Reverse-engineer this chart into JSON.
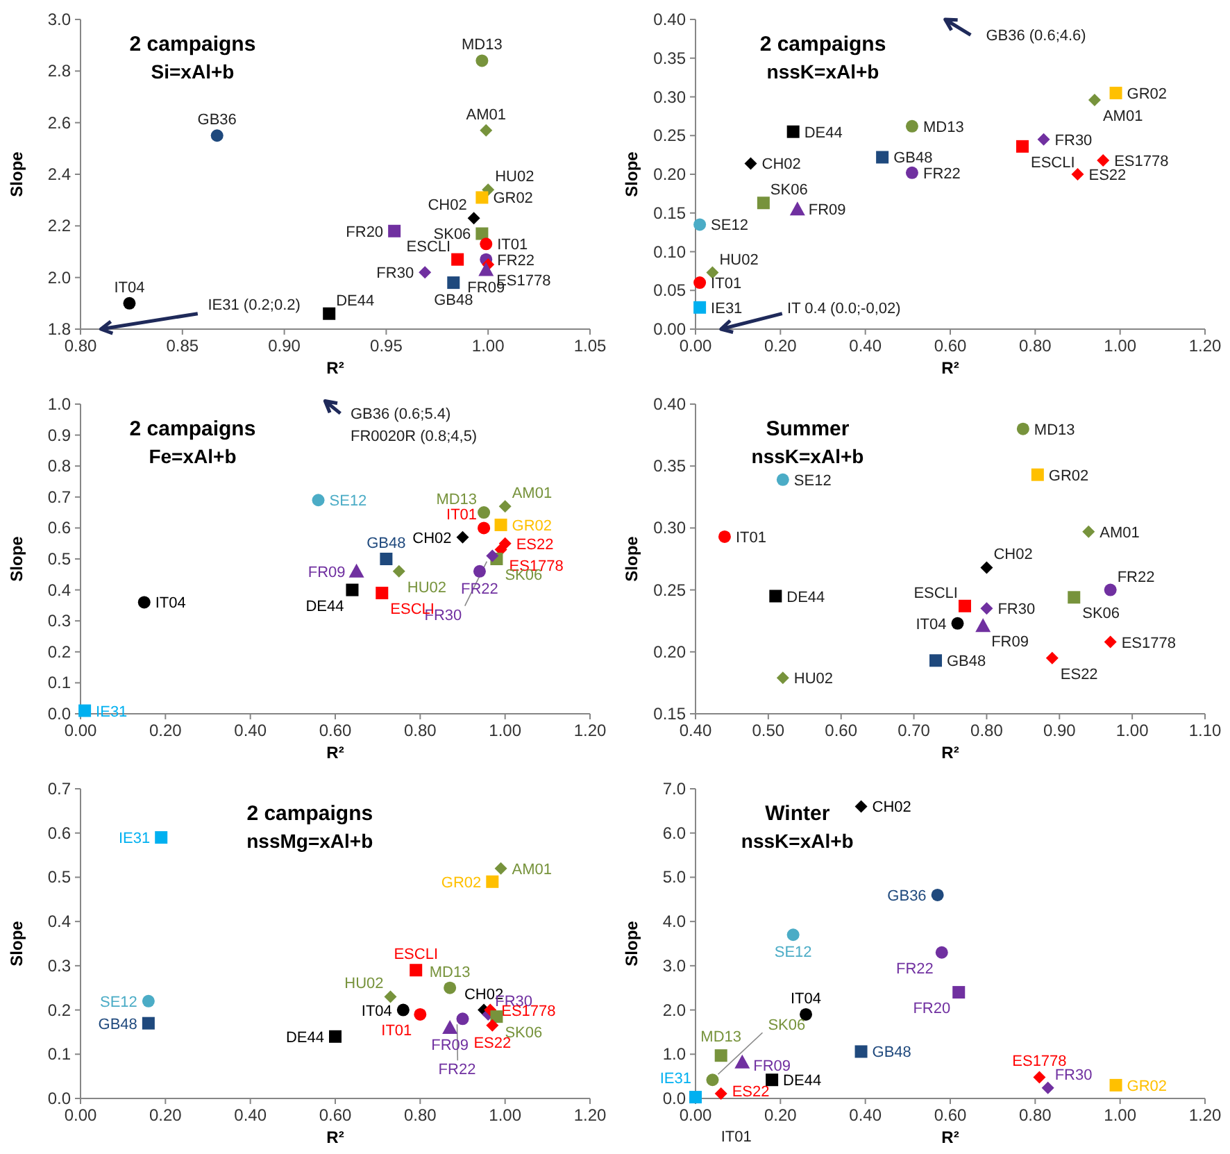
{
  "chart_data": [
    {
      "type": "scatter",
      "title": "2 campaigns",
      "subtitle": "Si=xAl+b",
      "xlabel": "R²",
      "ylabel": "Slope",
      "xlim": [
        0.8,
        1.05
      ],
      "xticks": [
        {
          "value": 0.8,
          "label": "0.80"
        },
        {
          "value": 0.85,
          "label": "0.85"
        },
        {
          "value": 0.9,
          "label": "0.90"
        },
        {
          "value": 0.95,
          "label": "0.95"
        },
        {
          "value": 1.0,
          "label": "1.00"
        },
        {
          "value": 1.05,
          "label": "1.05"
        }
      ],
      "ylim": [
        1.8,
        3.0
      ],
      "yticks": [
        {
          "value": 1.8,
          "label": "1.8"
        },
        {
          "value": 2.0,
          "label": "2.0"
        },
        {
          "value": 2.2,
          "label": "2.2"
        },
        {
          "value": 2.4,
          "label": "2.4"
        },
        {
          "value": 2.6,
          "label": "2.6"
        },
        {
          "value": 2.8,
          "label": "2.8"
        },
        {
          "value": 3.0,
          "label": "3.0"
        }
      ],
      "grid": false,
      "legend": false,
      "annotations": [
        "IE31 (0.2;0.2)"
      ],
      "series": [
        {
          "name": "MD13",
          "color": "#77933c",
          "marker": "circle",
          "x": [
            0.997
          ],
          "values": [
            2.84
          ]
        },
        {
          "name": "AM01",
          "color": "#77933c",
          "marker": "diamond",
          "x": [
            0.999
          ],
          "values": [
            2.57
          ]
        },
        {
          "name": "GB36",
          "color": "#1f497d",
          "marker": "circle",
          "x": [
            0.867
          ],
          "values": [
            2.55
          ]
        },
        {
          "name": "HU02",
          "color": "#77933c",
          "marker": "diamond",
          "x": [
            1.0
          ],
          "values": [
            2.34
          ]
        },
        {
          "name": "GR02",
          "color": "#ffc000",
          "marker": "square",
          "x": [
            0.997
          ],
          "values": [
            2.31
          ]
        },
        {
          "name": "CH02",
          "color": "#000000",
          "marker": "diamond",
          "x": [
            0.993
          ],
          "values": [
            2.23
          ]
        },
        {
          "name": "FR20",
          "color": "#7030a0",
          "marker": "square",
          "x": [
            0.954
          ],
          "values": [
            2.18
          ]
        },
        {
          "name": "SK06",
          "color": "#77933c",
          "marker": "square",
          "x": [
            0.997
          ],
          "values": [
            2.17
          ]
        },
        {
          "name": "IT01",
          "color": "#ff0000",
          "marker": "circle",
          "x": [
            0.999
          ],
          "values": [
            2.13
          ]
        },
        {
          "name": "ESCLI",
          "color": "#ff0000",
          "marker": "square",
          "x": [
            0.985
          ],
          "values": [
            2.07
          ]
        },
        {
          "name": "FR22",
          "color": "#7030a0",
          "marker": "circle",
          "x": [
            0.999
          ],
          "values": [
            2.07
          ]
        },
        {
          "name": "ES1778",
          "color": "#ff0000",
          "marker": "diamond",
          "x": [
            1.0
          ],
          "values": [
            2.05
          ]
        },
        {
          "name": "FR09",
          "color": "#7030a0",
          "marker": "triangle",
          "x": [
            0.999
          ],
          "values": [
            2.03
          ]
        },
        {
          "name": "FR30",
          "color": "#7030a0",
          "marker": "diamond",
          "x": [
            0.969
          ],
          "values": [
            2.02
          ]
        },
        {
          "name": "GB48",
          "color": "#1f497d",
          "marker": "square",
          "x": [
            0.983
          ],
          "values": [
            1.98
          ]
        },
        {
          "name": "DE44",
          "color": "#000000",
          "marker": "square",
          "x": [
            0.922
          ],
          "values": [
            1.86
          ]
        },
        {
          "name": "IT04",
          "color": "#000000",
          "marker": "circle",
          "x": [
            0.824
          ],
          "values": [
            1.9
          ]
        }
      ]
    },
    {
      "type": "scatter",
      "title": "2 campaigns",
      "subtitle": "nssK=xAl+b",
      "xlabel": "R²",
      "ylabel": "Slope",
      "xlim": [
        0,
        1.2
      ],
      "xticks": [
        {
          "value": 0,
          "label": "0.00"
        },
        {
          "value": 0.2,
          "label": "0.20"
        },
        {
          "value": 0.4,
          "label": "0.40"
        },
        {
          "value": 0.6,
          "label": "0.60"
        },
        {
          "value": 0.8,
          "label": "0.80"
        },
        {
          "value": 1.0,
          "label": "1.00"
        },
        {
          "value": 1.2,
          "label": "1.20"
        }
      ],
      "ylim": [
        0,
        0.4
      ],
      "yticks": [
        {
          "value": 0,
          "label": "0.00"
        },
        {
          "value": 0.05,
          "label": "0.05"
        },
        {
          "value": 0.1,
          "label": "0.10"
        },
        {
          "value": 0.15,
          "label": "0.15"
        },
        {
          "value": 0.2,
          "label": "0.20"
        },
        {
          "value": 0.25,
          "label": "0.25"
        },
        {
          "value": 0.3,
          "label": "0.30"
        },
        {
          "value": 0.35,
          "label": "0.35"
        },
        {
          "value": 0.4,
          "label": "0.40"
        }
      ],
      "grid": false,
      "legend": false,
      "annotations": [
        "GB36 (0.6;4.6)",
        "IT 0.4 (0.0;-0,02)"
      ],
      "series": [
        {
          "name": "GR02",
          "color": "#ffc000",
          "marker": "square",
          "x": [
            0.99
          ],
          "values": [
            0.305
          ]
        },
        {
          "name": "AM01",
          "color": "#77933c",
          "marker": "diamond",
          "x": [
            0.94
          ],
          "values": [
            0.296
          ]
        },
        {
          "name": "DE44",
          "color": "#000000",
          "marker": "square",
          "x": [
            0.23
          ],
          "values": [
            0.255
          ]
        },
        {
          "name": "MD13",
          "color": "#77933c",
          "marker": "circle",
          "x": [
            0.51
          ],
          "values": [
            0.262
          ]
        },
        {
          "name": "FR30",
          "color": "#7030a0",
          "marker": "diamond",
          "x": [
            0.82
          ],
          "values": [
            0.245
          ]
        },
        {
          "name": "ESCLI",
          "color": "#ff0000",
          "marker": "square",
          "x": [
            0.77
          ],
          "values": [
            0.236
          ]
        },
        {
          "name": "GB48",
          "color": "#1f497d",
          "marker": "square",
          "x": [
            0.44
          ],
          "values": [
            0.222
          ]
        },
        {
          "name": "CH02",
          "color": "#000000",
          "marker": "diamond",
          "x": [
            0.13
          ],
          "values": [
            0.214
          ]
        },
        {
          "name": "ES1778",
          "color": "#ff0000",
          "marker": "diamond",
          "x": [
            0.96
          ],
          "values": [
            0.218
          ]
        },
        {
          "name": "FR22",
          "color": "#7030a0",
          "marker": "circle",
          "x": [
            0.51
          ],
          "values": [
            0.202
          ]
        },
        {
          "name": "ES22",
          "color": "#ff0000",
          "marker": "diamond",
          "x": [
            0.9
          ],
          "values": [
            0.2
          ]
        },
        {
          "name": "SK06",
          "color": "#77933c",
          "marker": "square",
          "x": [
            0.16
          ],
          "values": [
            0.163
          ]
        },
        {
          "name": "FR09",
          "color": "#7030a0",
          "marker": "triangle",
          "x": [
            0.24
          ],
          "values": [
            0.155
          ]
        },
        {
          "name": "SE12",
          "color": "#4bacc6",
          "marker": "circle",
          "x": [
            0.01
          ],
          "values": [
            0.135
          ]
        },
        {
          "name": "HU02",
          "color": "#77933c",
          "marker": "diamond",
          "x": [
            0.04
          ],
          "values": [
            0.073
          ]
        },
        {
          "name": "IT01",
          "color": "#ff0000",
          "marker": "circle",
          "x": [
            0.01
          ],
          "values": [
            0.06
          ]
        },
        {
          "name": "IE31",
          "color": "#00b0f0",
          "marker": "square",
          "x": [
            0.01
          ],
          "values": [
            0.028
          ]
        }
      ]
    },
    {
      "type": "scatter",
      "title": "2 campaigns",
      "subtitle": "Fe=xAl+b",
      "xlabel": "R²",
      "ylabel": "Slope",
      "xlim": [
        0,
        1.2
      ],
      "xticks": [
        {
          "value": 0,
          "label": "0.00"
        },
        {
          "value": 0.2,
          "label": "0.20"
        },
        {
          "value": 0.4,
          "label": "0.40"
        },
        {
          "value": 0.6,
          "label": "0.60"
        },
        {
          "value": 0.8,
          "label": "0.80"
        },
        {
          "value": 1.0,
          "label": "1.00"
        },
        {
          "value": 1.2,
          "label": "1.20"
        }
      ],
      "ylim": [
        0,
        1.0
      ],
      "yticks": [
        {
          "value": 0,
          "label": "0.0"
        },
        {
          "value": 0.1,
          "label": "0.1"
        },
        {
          "value": 0.2,
          "label": "0.2"
        },
        {
          "value": 0.3,
          "label": "0.3"
        },
        {
          "value": 0.4,
          "label": "0.4"
        },
        {
          "value": 0.5,
          "label": "0.5"
        },
        {
          "value": 0.6,
          "label": "0.6"
        },
        {
          "value": 0.7,
          "label": "0.7"
        },
        {
          "value": 0.8,
          "label": "0.8"
        },
        {
          "value": 0.9,
          "label": "0.9"
        },
        {
          "value": 1.0,
          "label": "1.0"
        }
      ],
      "grid": false,
      "legend": false,
      "annotations": [
        "GB36 (0.6;5.4)",
        "FR0020R (0.8;4,5)"
      ],
      "series": [
        {
          "name": "SE12",
          "color": "#4bacc6",
          "marker": "circle",
          "x": [
            0.56
          ],
          "values": [
            0.69
          ]
        },
        {
          "name": "AM01",
          "color": "#77933c",
          "marker": "diamond",
          "x": [
            1.0
          ],
          "values": [
            0.67
          ]
        },
        {
          "name": "MD13",
          "color": "#77933c",
          "marker": "circle",
          "x": [
            0.95
          ],
          "values": [
            0.65
          ]
        },
        {
          "name": "GR02",
          "color": "#ffc000",
          "marker": "square",
          "x": [
            0.99
          ],
          "values": [
            0.61
          ]
        },
        {
          "name": "IT01",
          "color": "#ff0000",
          "marker": "circle",
          "x": [
            0.95
          ],
          "values": [
            0.6
          ]
        },
        {
          "name": "CH02",
          "color": "#000000",
          "marker": "diamond",
          "x": [
            0.9
          ],
          "values": [
            0.57
          ]
        },
        {
          "name": "ES22",
          "color": "#ff0000",
          "marker": "diamond",
          "x": [
            1.0
          ],
          "values": [
            0.55
          ]
        },
        {
          "name": "ES1778",
          "color": "#ff0000",
          "marker": "diamond",
          "x": [
            0.99
          ],
          "values": [
            0.53
          ]
        },
        {
          "name": "SK06",
          "color": "#77933c",
          "marker": "square",
          "x": [
            0.98
          ],
          "values": [
            0.5
          ]
        },
        {
          "name": "FR30",
          "color": "#7030a0",
          "marker": "diamond",
          "x": [
            0.97
          ],
          "values": [
            0.51
          ]
        },
        {
          "name": "GB48",
          "color": "#1f497d",
          "marker": "square",
          "x": [
            0.72
          ],
          "values": [
            0.5
          ]
        },
        {
          "name": "HU02",
          "color": "#77933c",
          "marker": "diamond",
          "x": [
            0.75
          ],
          "values": [
            0.46
          ]
        },
        {
          "name": "FR09",
          "color": "#7030a0",
          "marker": "triangle",
          "x": [
            0.65
          ],
          "values": [
            0.46
          ]
        },
        {
          "name": "FR22",
          "color": "#7030a0",
          "marker": "circle",
          "x": [
            0.94
          ],
          "values": [
            0.46
          ]
        },
        {
          "name": "DE44",
          "color": "#000000",
          "marker": "square",
          "x": [
            0.64
          ],
          "values": [
            0.4
          ]
        },
        {
          "name": "ESCLI",
          "color": "#ff0000",
          "marker": "square",
          "x": [
            0.71
          ],
          "values": [
            0.39
          ]
        },
        {
          "name": "IT04",
          "color": "#000000",
          "marker": "circle",
          "x": [
            0.15
          ],
          "values": [
            0.36
          ]
        },
        {
          "name": "IE31",
          "color": "#00b0f0",
          "marker": "square",
          "x": [
            0.01
          ],
          "values": [
            0.01
          ]
        }
      ]
    },
    {
      "type": "scatter",
      "title": "Summer",
      "subtitle": "nssK=xAl+b",
      "xlabel": "R²",
      "ylabel": "Slope",
      "xlim": [
        0.4,
        1.1
      ],
      "xticks": [
        {
          "value": 0.4,
          "label": "0.40"
        },
        {
          "value": 0.5,
          "label": "0.50"
        },
        {
          "value": 0.6,
          "label": "0.60"
        },
        {
          "value": 0.7,
          "label": "0.70"
        },
        {
          "value": 0.8,
          "label": "0.80"
        },
        {
          "value": 0.9,
          "label": "0.90"
        },
        {
          "value": 1.0,
          "label": "1.00"
        },
        {
          "value": 1.1,
          "label": "1.10"
        }
      ],
      "ylim": [
        0.15,
        0.4
      ],
      "yticks": [
        {
          "value": 0.15,
          "label": "0.15"
        },
        {
          "value": 0.2,
          "label": "0.20"
        },
        {
          "value": 0.25,
          "label": "0.25"
        },
        {
          "value": 0.3,
          "label": "0.30"
        },
        {
          "value": 0.35,
          "label": "0.35"
        },
        {
          "value": 0.4,
          "label": "0.40"
        }
      ],
      "grid": false,
      "legend": false,
      "series": [
        {
          "name": "MD13",
          "color": "#77933c",
          "marker": "circle",
          "x": [
            0.85
          ],
          "values": [
            0.38
          ]
        },
        {
          "name": "GR02",
          "color": "#ffc000",
          "marker": "square",
          "x": [
            0.87
          ],
          "values": [
            0.343
          ]
        },
        {
          "name": "SE12",
          "color": "#4bacc6",
          "marker": "circle",
          "x": [
            0.52
          ],
          "values": [
            0.339
          ]
        },
        {
          "name": "AM01",
          "color": "#77933c",
          "marker": "diamond",
          "x": [
            0.94
          ],
          "values": [
            0.297
          ]
        },
        {
          "name": "IT01",
          "color": "#ff0000",
          "marker": "circle",
          "x": [
            0.44
          ],
          "values": [
            0.293
          ]
        },
        {
          "name": "CH02",
          "color": "#000000",
          "marker": "diamond",
          "x": [
            0.8
          ],
          "values": [
            0.268
          ]
        },
        {
          "name": "FR22",
          "color": "#7030a0",
          "marker": "circle",
          "x": [
            0.97
          ],
          "values": [
            0.25
          ]
        },
        {
          "name": "DE44",
          "color": "#000000",
          "marker": "square",
          "x": [
            0.51
          ],
          "values": [
            0.245
          ]
        },
        {
          "name": "SK06",
          "color": "#77933c",
          "marker": "square",
          "x": [
            0.92
          ],
          "values": [
            0.244
          ]
        },
        {
          "name": "ESCLI",
          "color": "#ff0000",
          "marker": "square",
          "x": [
            0.77
          ],
          "values": [
            0.237
          ]
        },
        {
          "name": "FR30",
          "color": "#7030a0",
          "marker": "diamond",
          "x": [
            0.8
          ],
          "values": [
            0.235
          ]
        },
        {
          "name": "IT04",
          "color": "#000000",
          "marker": "circle",
          "x": [
            0.76
          ],
          "values": [
            0.223
          ]
        },
        {
          "name": "FR09",
          "color": "#7030a0",
          "marker": "triangle",
          "x": [
            0.795
          ],
          "values": [
            0.221
          ]
        },
        {
          "name": "ES1778",
          "color": "#ff0000",
          "marker": "diamond",
          "x": [
            0.97
          ],
          "values": [
            0.208
          ]
        },
        {
          "name": "ES22",
          "color": "#ff0000",
          "marker": "diamond",
          "x": [
            0.89
          ],
          "values": [
            0.195
          ]
        },
        {
          "name": "GB48",
          "color": "#1f497d",
          "marker": "square",
          "x": [
            0.73
          ],
          "values": [
            0.193
          ]
        },
        {
          "name": "HU02",
          "color": "#77933c",
          "marker": "diamond",
          "x": [
            0.52
          ],
          "values": [
            0.179
          ]
        }
      ]
    },
    {
      "type": "scatter",
      "title": "2 campaigns",
      "subtitle": "nssMg=xAl+b",
      "xlabel": "R²",
      "ylabel": "Slope",
      "xlim": [
        0,
        1.2
      ],
      "xticks": [
        {
          "value": 0,
          "label": "0.00"
        },
        {
          "value": 0.2,
          "label": "0.20"
        },
        {
          "value": 0.4,
          "label": "0.40"
        },
        {
          "value": 0.6,
          "label": "0.60"
        },
        {
          "value": 0.8,
          "label": "0.80"
        },
        {
          "value": 1.0,
          "label": "1.00"
        },
        {
          "value": 1.2,
          "label": "1.20"
        }
      ],
      "ylim": [
        0,
        0.7
      ],
      "yticks": [
        {
          "value": 0,
          "label": "0.0"
        },
        {
          "value": 0.1,
          "label": "0.1"
        },
        {
          "value": 0.2,
          "label": "0.2"
        },
        {
          "value": 0.3,
          "label": "0.3"
        },
        {
          "value": 0.4,
          "label": "0.4"
        },
        {
          "value": 0.5,
          "label": "0.5"
        },
        {
          "value": 0.6,
          "label": "0.6"
        },
        {
          "value": 0.7,
          "label": "0.7"
        }
      ],
      "grid": false,
      "legend": false,
      "series": [
        {
          "name": "IE31",
          "color": "#00b0f0",
          "marker": "square",
          "x": [
            0.19
          ],
          "values": [
            0.59
          ]
        },
        {
          "name": "AM01",
          "color": "#77933c",
          "marker": "diamond",
          "x": [
            0.99
          ],
          "values": [
            0.52
          ]
        },
        {
          "name": "GR02",
          "color": "#ffc000",
          "marker": "square",
          "x": [
            0.97
          ],
          "values": [
            0.49
          ]
        },
        {
          "name": "ESCLI",
          "color": "#ff0000",
          "marker": "square",
          "x": [
            0.79
          ],
          "values": [
            0.29
          ]
        },
        {
          "name": "MD13",
          "color": "#77933c",
          "marker": "circle",
          "x": [
            0.87
          ],
          "values": [
            0.25
          ]
        },
        {
          "name": "HU02",
          "color": "#77933c",
          "marker": "diamond",
          "x": [
            0.73
          ],
          "values": [
            0.23
          ]
        },
        {
          "name": "SE12",
          "color": "#4bacc6",
          "marker": "circle",
          "x": [
            0.16
          ],
          "values": [
            0.22
          ]
        },
        {
          "name": "IT04",
          "color": "#000000",
          "marker": "circle",
          "x": [
            0.76
          ],
          "values": [
            0.2
          ]
        },
        {
          "name": "IT01",
          "color": "#ff0000",
          "marker": "circle",
          "x": [
            0.8
          ],
          "values": [
            0.19
          ]
        },
        {
          "name": "CH02",
          "color": "#000000",
          "marker": "diamond",
          "x": [
            0.95
          ],
          "values": [
            0.2
          ]
        },
        {
          "name": "FR30",
          "color": "#7030a0",
          "marker": "diamond",
          "x": [
            0.96
          ],
          "values": [
            0.19
          ]
        },
        {
          "name": "ES1778",
          "color": "#ff0000",
          "marker": "diamond",
          "x": [
            0.965
          ],
          "values": [
            0.2
          ]
        },
        {
          "name": "SK06",
          "color": "#77933c",
          "marker": "square",
          "x": [
            0.98
          ],
          "values": [
            0.185
          ]
        },
        {
          "name": "FR22",
          "color": "#7030a0",
          "marker": "circle",
          "x": [
            0.9
          ],
          "values": [
            0.18
          ]
        },
        {
          "name": "ES22",
          "color": "#ff0000",
          "marker": "diamond",
          "x": [
            0.97
          ],
          "values": [
            0.165
          ]
        },
        {
          "name": "GB48",
          "color": "#1f497d",
          "marker": "square",
          "x": [
            0.16
          ],
          "values": [
            0.17
          ]
        },
        {
          "name": "FR09",
          "color": "#7030a0",
          "marker": "triangle",
          "x": [
            0.87
          ],
          "values": [
            0.16
          ]
        },
        {
          "name": "DE44",
          "color": "#000000",
          "marker": "square",
          "x": [
            0.6
          ],
          "values": [
            0.14
          ]
        }
      ]
    },
    {
      "type": "scatter",
      "title": "Winter",
      "subtitle": "nssK=xAl+b",
      "xlabel": "R²",
      "ylabel": "Slope",
      "xlim": [
        0,
        1.2
      ],
      "xticks": [
        {
          "value": 0,
          "label": "0.00"
        },
        {
          "value": 0.2,
          "label": "0.20"
        },
        {
          "value": 0.4,
          "label": "0.40"
        },
        {
          "value": 0.6,
          "label": "0.60"
        },
        {
          "value": 0.8,
          "label": "0.80"
        },
        {
          "value": 1.0,
          "label": "1.00"
        },
        {
          "value": 1.2,
          "label": "1.20"
        }
      ],
      "ylim": [
        0,
        7.0
      ],
      "yticks": [
        {
          "value": 0,
          "label": "0.0"
        },
        {
          "value": 1,
          "label": "1.0"
        },
        {
          "value": 2,
          "label": "2.0"
        },
        {
          "value": 3,
          "label": "3.0"
        },
        {
          "value": 4,
          "label": "4.0"
        },
        {
          "value": 5,
          "label": "5.0"
        },
        {
          "value": 6,
          "label": "6.0"
        },
        {
          "value": 7,
          "label": "7.0"
        }
      ],
      "grid": false,
      "legend": false,
      "annotations": [
        "IT01"
      ],
      "series": [
        {
          "name": "CH02",
          "color": "#000000",
          "marker": "diamond",
          "x": [
            0.39
          ],
          "values": [
            6.6
          ]
        },
        {
          "name": "GB36",
          "color": "#1f497d",
          "marker": "circle",
          "x": [
            0.57
          ],
          "values": [
            4.6
          ]
        },
        {
          "name": "SE12",
          "color": "#4bacc6",
          "marker": "circle",
          "x": [
            0.23
          ],
          "values": [
            3.7
          ]
        },
        {
          "name": "FR22",
          "color": "#7030a0",
          "marker": "circle",
          "x": [
            0.58
          ],
          "values": [
            3.3
          ]
        },
        {
          "name": "FR20",
          "color": "#7030a0",
          "marker": "square",
          "x": [
            0.62
          ],
          "values": [
            2.4
          ]
        },
        {
          "name": "IT04",
          "color": "#000000",
          "marker": "circle",
          "x": [
            0.26
          ],
          "values": [
            1.9
          ]
        },
        {
          "name": "GB48",
          "color": "#1f497d",
          "marker": "square",
          "x": [
            0.39
          ],
          "values": [
            1.06
          ]
        },
        {
          "name": "MD13",
          "color": "#77933c",
          "marker": "square",
          "x": [
            0.06
          ],
          "values": [
            0.97
          ]
        },
        {
          "name": "FR09",
          "color": "#7030a0",
          "marker": "triangle",
          "x": [
            0.11
          ],
          "values": [
            0.82
          ]
        },
        {
          "name": "SK06",
          "color": "#77933c",
          "marker": "circle",
          "x": [
            0.04
          ],
          "values": [
            0.42
          ]
        },
        {
          "name": "DE44",
          "color": "#000000",
          "marker": "square",
          "x": [
            0.18
          ],
          "values": [
            0.42
          ]
        },
        {
          "name": "ES1778",
          "color": "#ff0000",
          "marker": "diamond",
          "x": [
            0.81
          ],
          "values": [
            0.48
          ]
        },
        {
          "name": "FR30",
          "color": "#7030a0",
          "marker": "diamond",
          "x": [
            0.83
          ],
          "values": [
            0.24
          ]
        },
        {
          "name": "GR02",
          "color": "#ffc000",
          "marker": "square",
          "x": [
            0.99
          ],
          "values": [
            0.3
          ]
        },
        {
          "name": "IE31",
          "color": "#00b0f0",
          "marker": "square",
          "x": [
            0.0
          ],
          "values": [
            0.03
          ]
        },
        {
          "name": "ES22",
          "color": "#ff0000",
          "marker": "diamond",
          "x": [
            0.06
          ],
          "values": [
            0.11
          ]
        }
      ]
    }
  ]
}
